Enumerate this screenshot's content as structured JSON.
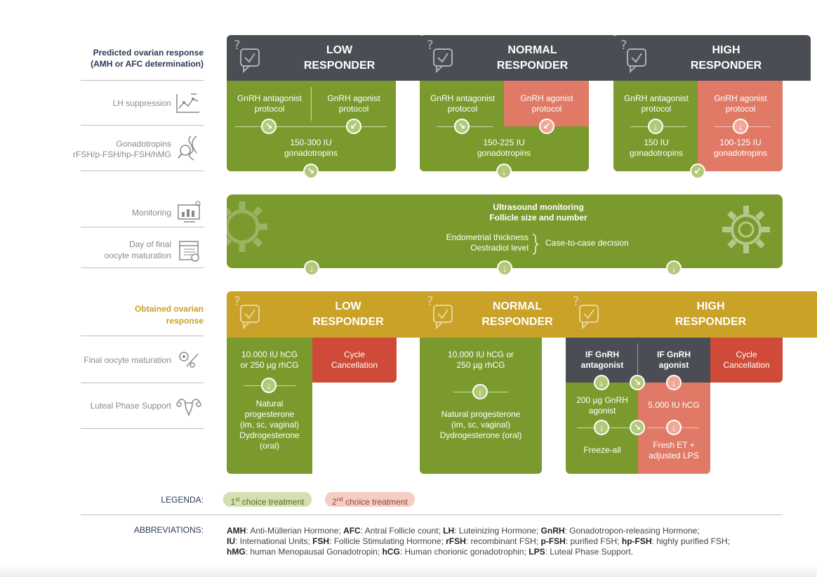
{
  "labels": {
    "predicted": "Predicted ovarian response",
    "predicted_sub": "(AMH or AFC determination)",
    "lh": "LH suppression",
    "gonad1": "Gonadotropins",
    "gonad2": "rFSH/p-FSH/hp-FSH/hMG",
    "monitoring": "Monitoring",
    "day1": "Day of final",
    "day2": "oocyte maturation",
    "obtained1": "Obtained ovarian",
    "obtained2": "response",
    "final": "Final oocyte maturation",
    "luteal": "Luteal Phase Support"
  },
  "top": {
    "low": {
      "l1": "LOW",
      "l2": "RESPONDER",
      "antag": [
        "GnRH antagonist",
        "protocol"
      ],
      "agon": [
        "GnRH agonist",
        "protocol"
      ],
      "dose": [
        "150-300 IU",
        "gonadotropins"
      ]
    },
    "normal": {
      "l1": "NORMAL",
      "l2": "RESPONDER",
      "antag": [
        "GnRH antagonist",
        "protocol"
      ],
      "agon": [
        "GnRH agonist",
        "protocol"
      ],
      "dose": [
        "150-225 IU",
        "gonadotropins"
      ]
    },
    "high": {
      "l1": "HIGH",
      "l2": "RESPONDER",
      "antag": [
        "GnRH antagonist",
        "protocol"
      ],
      "agon": [
        "GnRH agonist",
        "protocol"
      ],
      "dose_a": [
        "150 IU",
        "gonadotropins"
      ],
      "dose_b": [
        "100-125 IU",
        "gonadotropins"
      ]
    }
  },
  "monitor": {
    "t1": "Ultrasound monitoring",
    "t2": "Follicle size and number",
    "e1": "Endometrial thickness",
    "e2": "Oestradiol level",
    "decision": "Case-to-case decision"
  },
  "bottom": {
    "low": {
      "l1": "LOW",
      "l2": "RESPONDER",
      "hcg": [
        "10.000 IU hCG",
        "or 250 µg rhCG"
      ],
      "cancel": [
        "Cycle",
        "Cancellation"
      ],
      "luteal": [
        "Natural",
        "progesterone",
        "(im, sc, vaginal)",
        "Dydrogesterone",
        "(oral)"
      ]
    },
    "normal": {
      "l1": "NORMAL",
      "l2": "RESPONDER",
      "hcg": [
        "10.000 IU hCG or",
        "250 µg rhCG"
      ],
      "luteal": [
        "Natural progesterone",
        "(im, sc, vaginal)",
        "Dydrogesterone (oral)"
      ]
    },
    "high": {
      "l1": "HIGH",
      "l2": "RESPONDER",
      "if_antag": [
        "IF GnRH",
        "antagonist"
      ],
      "if_agon": [
        "IF GnRH",
        "agonist"
      ],
      "cancel": [
        "Cycle",
        "Cancellation"
      ],
      "gnrh_dose": [
        "200 µg GnRH",
        "agonist"
      ],
      "hcg": "5.000 IU hCG",
      "freeze": "Freeze-all",
      "fresh": [
        "Fresh ET +",
        "adjusted LPS"
      ]
    }
  },
  "legend": {
    "label": "LEGENDA:",
    "first": "1st choice treatment",
    "first_num": "1",
    "first_sup": "st",
    "first_rest": " choice treatment",
    "second_num": "2",
    "second_sup": "nd",
    "second_rest": " choice treatment"
  },
  "abbr": {
    "label": "ABBREVIATIONS:",
    "items": [
      [
        "AMH",
        ": Anti-Müllerian Hormone; "
      ],
      [
        "AFC",
        ": Antral Follicle count; "
      ],
      [
        "LH",
        ": Luteinizing Hormone; "
      ],
      [
        "GnRH",
        ": Gonadotropon-releasing Hormone;"
      ],
      [
        "IU",
        ": International Units; "
      ],
      [
        "FSH",
        ": Follicle Stimulating Hormone; "
      ],
      [
        "rFSH",
        ": recombinant FSH; "
      ],
      [
        "p-FSH",
        ": purified FSH; "
      ],
      [
        "hp-FSH",
        ": highly purified FSH;"
      ],
      [
        "hMG",
        ": human Menopausal Gonadotropin; "
      ],
      [
        "hCG",
        ": Human chorionic gonadotrophin; "
      ],
      [
        "LPS",
        ": Luteal Phase Support."
      ]
    ]
  },
  "colors": {
    "dark": "#4a4d54",
    "green": "#7a9a2e",
    "gold": "#c9a227",
    "salmon": "#e07a66",
    "red": "#cf4a38"
  }
}
